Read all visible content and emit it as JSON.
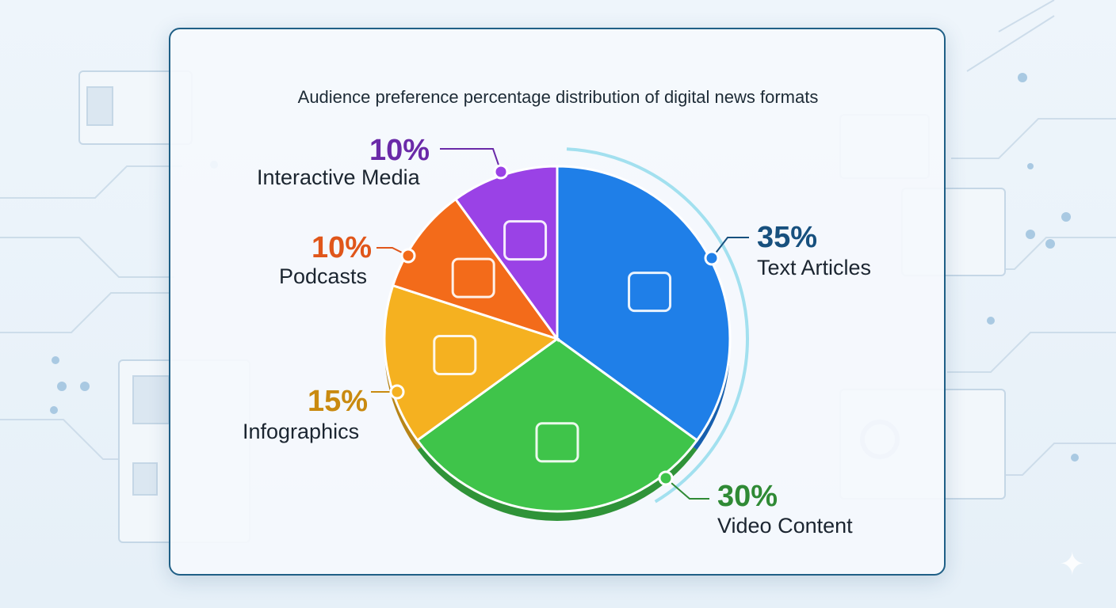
{
  "chart_data": {
    "type": "pie",
    "title": "Audience preference percentage distribution of digital news formats",
    "slices": [
      {
        "label": "Text Articles",
        "value": 35,
        "value_label": "35%",
        "color": "#1f7fe8",
        "label_color": "#17507e",
        "icon": "notepad-pen-icon"
      },
      {
        "label": "Video Content",
        "value": 30,
        "value_label": "30%",
        "color": "#3fc44a",
        "label_color": "#2f8a35",
        "icon": "video-camera-icon"
      },
      {
        "label": "Infographics",
        "value": 15,
        "value_label": "15%",
        "color": "#f5b120",
        "label_color": "#c98a10",
        "icon": "chart-document-icon"
      },
      {
        "label": "Podcasts",
        "value": 10,
        "value_label": "10%",
        "color": "#f36b1a",
        "label_color": "#e0561a",
        "icon": "headphones-microphone-icon"
      },
      {
        "label": "Interactive Media",
        "value": 10,
        "value_label": "10%",
        "color": "#9a42e6",
        "label_color": "#6a2aa8",
        "icon": "hand-pointer-icon"
      }
    ],
    "legend": "none"
  }
}
